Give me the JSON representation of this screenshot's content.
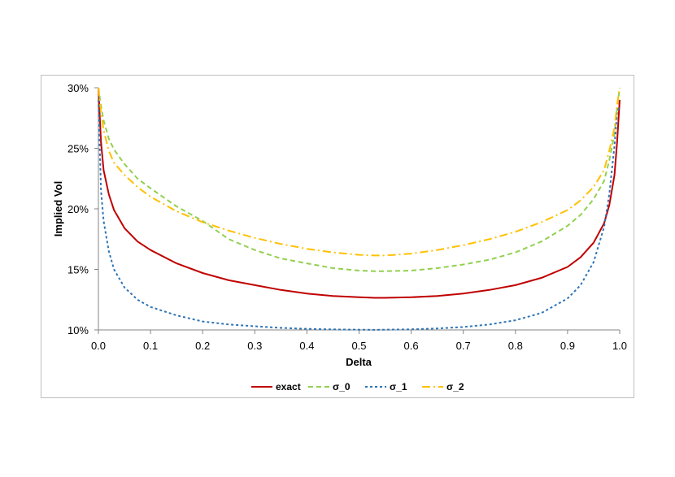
{
  "chart_data": {
    "type": "line",
    "title": "",
    "xlabel": "Delta",
    "ylabel": "Implied Vol",
    "xlim": [
      0.0,
      1.0
    ],
    "ylim": [
      0.1,
      0.3
    ],
    "x_ticks": [
      "0.0",
      "0.1",
      "0.2",
      "0.3",
      "0.4",
      "0.5",
      "0.6",
      "0.7",
      "0.8",
      "0.9",
      "1.0"
    ],
    "y_ticks": [
      "10%",
      "15%",
      "20%",
      "25%",
      "30%"
    ],
    "legend_position": "bottom",
    "x": [
      0.0,
      0.005,
      0.01,
      0.02,
      0.03,
      0.05,
      0.075,
      0.1,
      0.15,
      0.2,
      0.25,
      0.3,
      0.35,
      0.4,
      0.45,
      0.5,
      0.53,
      0.55,
      0.6,
      0.65,
      0.7,
      0.75,
      0.8,
      0.85,
      0.9,
      0.925,
      0.95,
      0.97,
      0.98,
      0.99,
      0.995,
      1.0
    ],
    "series": [
      {
        "name": "exact",
        "color": "#c00000",
        "dash": "",
        "values": [
          0.3,
          0.255,
          0.232,
          0.212,
          0.199,
          0.184,
          0.173,
          0.166,
          0.155,
          0.147,
          0.141,
          0.137,
          0.133,
          0.13,
          0.128,
          0.127,
          0.1265,
          0.1265,
          0.127,
          0.128,
          0.13,
          0.133,
          0.137,
          0.143,
          0.152,
          0.16,
          0.172,
          0.188,
          0.203,
          0.228,
          0.255,
          0.29
        ]
      },
      {
        "name": "σ_0",
        "color": "#92d050",
        "dash": "6,4",
        "values": [
          0.3,
          0.285,
          0.273,
          0.258,
          0.249,
          0.237,
          0.225,
          0.217,
          0.202,
          0.19,
          0.175,
          0.166,
          0.159,
          0.155,
          0.151,
          0.149,
          0.1485,
          0.1485,
          0.149,
          0.151,
          0.154,
          0.158,
          0.164,
          0.173,
          0.186,
          0.195,
          0.208,
          0.223,
          0.24,
          0.262,
          0.283,
          0.3
        ]
      },
      {
        "name": "σ_1",
        "color": "#2e75b6",
        "dash": "3,3",
        "values": [
          0.29,
          0.215,
          0.19,
          0.165,
          0.15,
          0.135,
          0.125,
          0.119,
          0.112,
          0.107,
          0.1045,
          0.103,
          0.1017,
          0.1009,
          0.1004,
          0.1002,
          0.1001,
          0.1002,
          0.1005,
          0.1012,
          0.1024,
          0.1045,
          0.108,
          0.114,
          0.126,
          0.137,
          0.156,
          0.185,
          0.212,
          0.252,
          0.28,
          0.285
        ]
      },
      {
        "name": "σ_2",
        "color": "#ffc000",
        "dash": "10,4,2,4",
        "values": [
          0.3,
          0.28,
          0.265,
          0.248,
          0.238,
          0.228,
          0.218,
          0.21,
          0.198,
          0.189,
          0.182,
          0.176,
          0.171,
          0.167,
          0.164,
          0.162,
          0.1615,
          0.1615,
          0.163,
          0.166,
          0.17,
          0.175,
          0.181,
          0.189,
          0.199,
          0.207,
          0.218,
          0.232,
          0.248,
          0.267,
          0.286,
          0.3
        ]
      }
    ]
  }
}
